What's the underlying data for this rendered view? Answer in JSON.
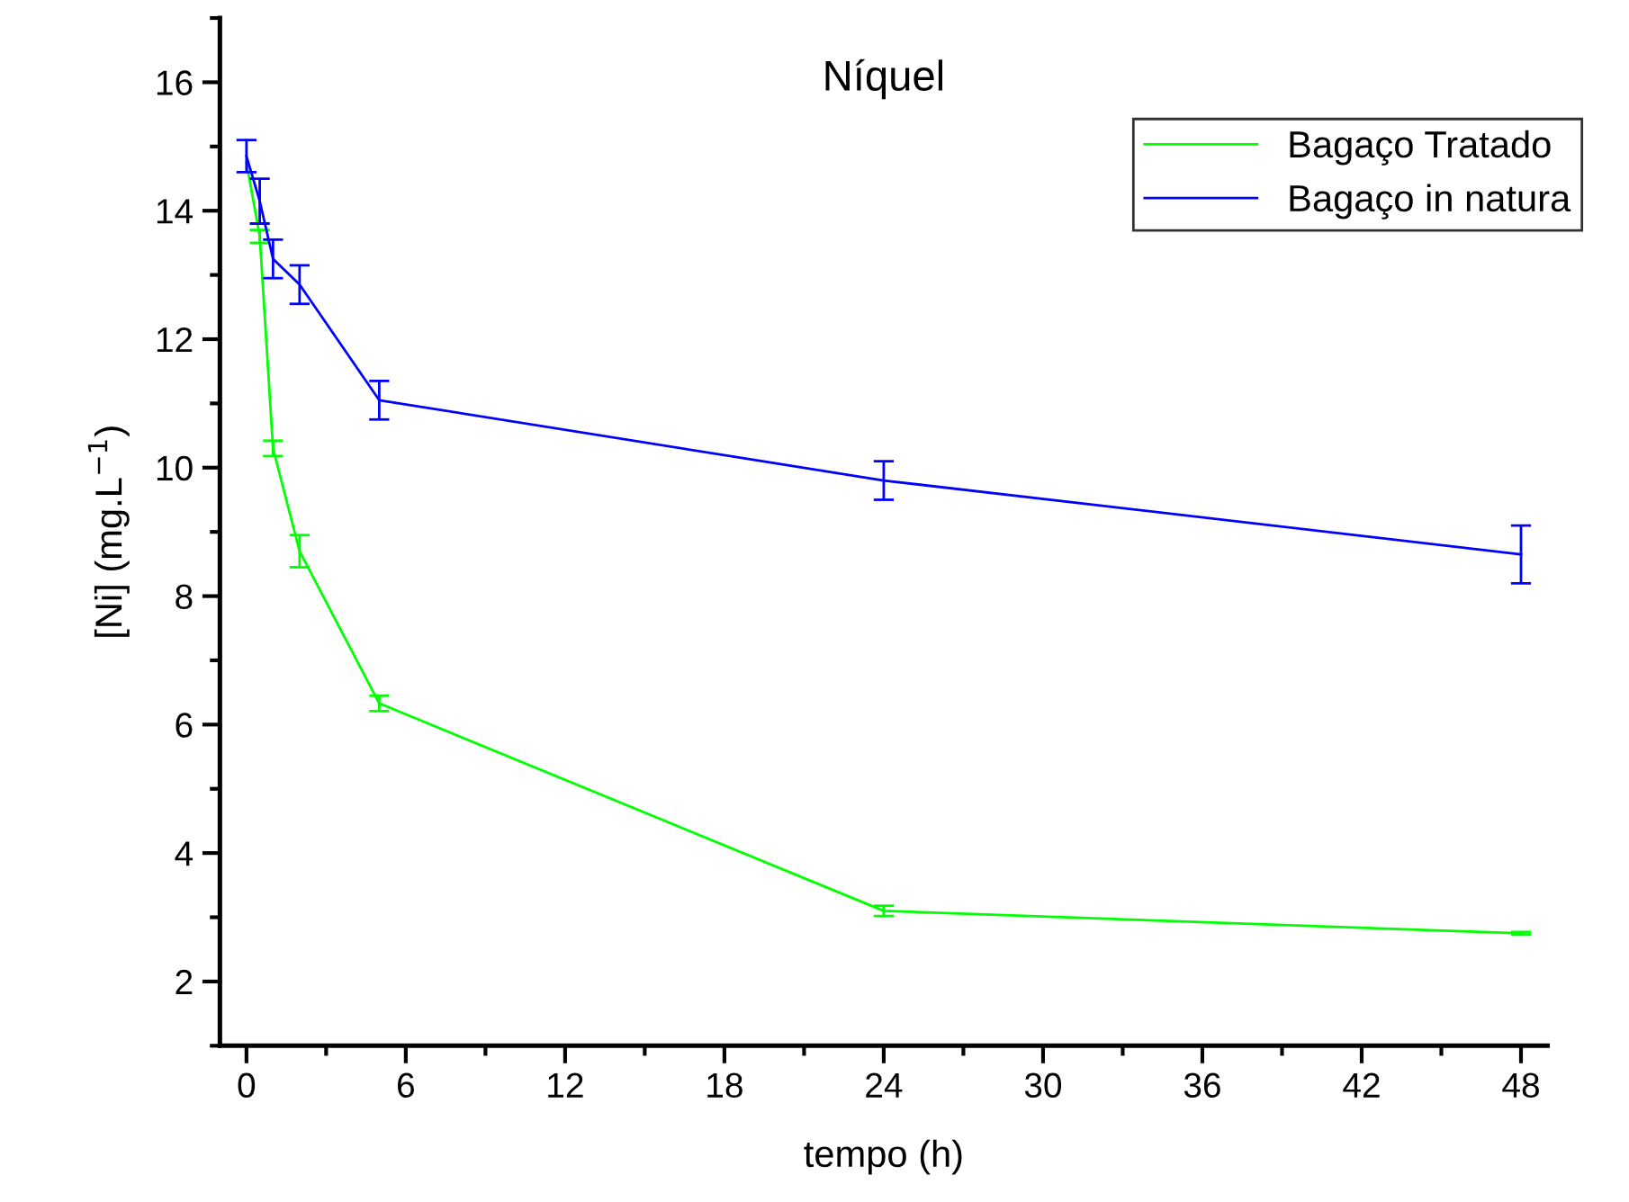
{
  "chart_data": {
    "type": "line",
    "title": "Níquel",
    "xlabel": "tempo (h)",
    "ylabel": "[Ni] (mg.L$^{−1}$)",
    "x": [
      0,
      0.5,
      1,
      2,
      5,
      24,
      48
    ],
    "series": [
      {
        "name": "Bagaço Tratado",
        "color": "#00ff00",
        "values": [
          14.75,
          13.6,
          10.3,
          8.7,
          6.33,
          3.1,
          2.75
        ],
        "errors": [
          null,
          0.1,
          0.12,
          0.25,
          0.12,
          0.08,
          0.02
        ]
      },
      {
        "name": "Bagaço in natura",
        "color": "#0000ff",
        "values": [
          14.85,
          14.15,
          13.25,
          12.85,
          11.05,
          9.8,
          8.65
        ],
        "errors": [
          0.25,
          0.35,
          0.3,
          0.3,
          0.3,
          0.3,
          0.45
        ]
      }
    ],
    "xlim": [
      -1,
      49
    ],
    "xticks": [
      0,
      6,
      12,
      18,
      24,
      30,
      36,
      42,
      48
    ],
    "ylim": [
      1,
      17
    ],
    "yticks": [
      2,
      4,
      6,
      8,
      10,
      12,
      14,
      16
    ],
    "grid": false,
    "legend": "top right",
    "marker": "none",
    "line_style": "solid"
  }
}
